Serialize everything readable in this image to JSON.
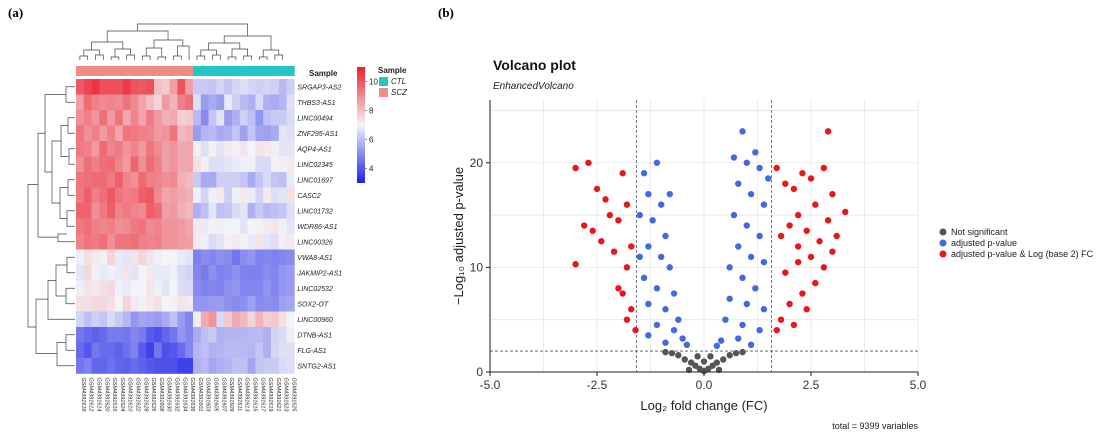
{
  "panel_a_label": "(a)",
  "panel_b_label": "(b)",
  "chart_data": [
    {
      "type": "heatmap",
      "annotation_title": "Sample",
      "annotation_legend": {
        "title": "Sample",
        "entries": [
          {
            "name": "CTL",
            "color": "#22c6c9"
          },
          {
            "name": "SCZ",
            "color": "#f08c86"
          }
        ]
      },
      "colorbar": {
        "ticks": [
          10,
          8,
          6,
          4
        ],
        "min": 3,
        "max": 11,
        "low_color": "#1d22e6",
        "mid_color": "#f4f4f8",
        "high_color": "#ec1f2c"
      },
      "genes": [
        "SRGAP3-AS2",
        "THBS3-AS1",
        "LINC00494",
        "ZNF295-AS1",
        "AQP4-AS1",
        "LINC02345",
        "LINC01697",
        "CASC2",
        "LINC01732",
        "WDR86-AS1",
        "LINC00326",
        "VWA8-AS1",
        "JAKMIP2-AS1",
        "LINC02532",
        "SOX2-OT",
        "LINC00960",
        "DTNB-AS1",
        "FLG-AS1",
        "SNTG2-AS1"
      ],
      "samples": [
        "GSM4391618",
        "GSM4391612",
        "GSM4391614",
        "GSM4391620",
        "GSM4391616",
        "GSM4391624",
        "GSM4391610",
        "GSM4391622",
        "GSM4391628",
        "GSM4391626",
        "GSM4391608",
        "GSM4391630",
        "GSM4391632",
        "GSM4391634",
        "GSM4391636",
        "GSM4391601",
        "GSM4391603",
        "GSM4391605",
        "GSM4391607",
        "GSM4391609",
        "GSM4391611",
        "GSM4391613",
        "GSM4391615",
        "GSM4391617",
        "GSM4391619",
        "GSM4391621",
        "GSM4391623",
        "GSM4391625"
      ],
      "sample_groups": [
        "SCZ",
        "SCZ",
        "SCZ",
        "SCZ",
        "SCZ",
        "SCZ",
        "SCZ",
        "SCZ",
        "SCZ",
        "SCZ",
        "SCZ",
        "SCZ",
        "SCZ",
        "SCZ",
        "SCZ",
        "CTL",
        "CTL",
        "CTL",
        "CTL",
        "CTL",
        "CTL",
        "CTL",
        "CTL",
        "CTL",
        "CTL",
        "CTL",
        "CTL",
        "CTL"
      ],
      "values": [
        [
          9.9,
          10.3,
          10.6,
          10.1,
          10.1,
          10.1,
          10.5,
          10.0,
          9.9,
          10.1,
          8.0,
          7.8,
          8.6,
          10.0,
          8.6,
          6.2,
          6.2,
          6.1,
          6.4,
          6.1,
          6.4,
          6.6,
          6.4,
          6.3,
          6.4,
          6.3,
          5.9,
          6.3
        ],
        [
          8.6,
          9.6,
          9.2,
          9.0,
          9.1,
          9.0,
          9.4,
          9.0,
          8.5,
          8.0,
          7.6,
          8.7,
          8.2,
          9.2,
          9.5,
          6.6,
          5.3,
          5.6,
          5.3,
          6.8,
          6.3,
          5.9,
          5.7,
          6.5,
          5.7,
          5.6,
          5.8,
          6.6
        ],
        [
          8.9,
          9.2,
          8.8,
          9.5,
          8.7,
          9.4,
          8.4,
          9.1,
          8.5,
          9.3,
          8.7,
          8.3,
          8.4,
          7.7,
          7.8,
          5.9,
          5.0,
          6.1,
          6.7,
          5.3,
          5.7,
          6.3,
          6.0,
          5.2,
          6.0,
          6.2,
          6.2,
          6.5
        ],
        [
          9.4,
          8.9,
          9.2,
          8.7,
          9.2,
          8.5,
          9.4,
          9.3,
          9.2,
          9.1,
          8.7,
          8.8,
          9.4,
          8.1,
          8.3,
          5.3,
          5.8,
          5.9,
          5.6,
          5.7,
          6.1,
          5.4,
          6.1,
          5.5,
          5.4,
          5.6,
          6.7,
          6.6
        ],
        [
          9.3,
          9.2,
          8.7,
          9.6,
          9.1,
          9.3,
          8.8,
          9.1,
          8.7,
          9.4,
          9.0,
          8.6,
          8.8,
          8.4,
          8.5,
          7.1,
          6.6,
          7.1,
          6.7,
          7.2,
          7.1,
          7.3,
          7.0,
          7.3,
          7.2,
          6.9,
          6.7,
          6.7
        ],
        [
          8.9,
          9.5,
          9.2,
          9.5,
          9.6,
          9.1,
          8.7,
          9.7,
          8.9,
          9.6,
          9.2,
          8.6,
          8.8,
          8.4,
          8.5,
          7.4,
          7.1,
          6.6,
          6.6,
          6.7,
          6.8,
          6.9,
          6.9,
          6.5,
          6.5,
          7.1,
          6.9,
          7.2
        ],
        [
          9.4,
          9.5,
          9.6,
          9.6,
          9.3,
          9.8,
          9.1,
          8.9,
          9.6,
          9.2,
          9.1,
          8.9,
          9.0,
          8.3,
          8.1,
          6.2,
          5.6,
          5.6,
          6.3,
          6.3,
          6.3,
          6.1,
          5.6,
          6.1,
          6.5,
          6.1,
          6.0,
          6.8
        ],
        [
          9.3,
          9.8,
          9.2,
          9.5,
          9.9,
          9.4,
          9.2,
          9.3,
          9.8,
          9.9,
          9.0,
          8.5,
          8.6,
          8.4,
          8.3,
          6.9,
          6.4,
          6.9,
          7.2,
          6.3,
          6.9,
          7.2,
          6.8,
          6.4,
          7.2,
          6.6,
          6.7,
          7.4
        ],
        [
          9.7,
          9.7,
          8.9,
          9.3,
          9.8,
          9.1,
          9.3,
          9.1,
          9.0,
          9.8,
          9.6,
          8.6,
          8.7,
          8.3,
          8.1,
          5.7,
          6.0,
          6.7,
          6.0,
          6.1,
          6.5,
          6.7,
          5.7,
          6.2,
          5.9,
          6.0,
          6.1,
          6.6
        ],
        [
          9.3,
          9.5,
          9.2,
          9.1,
          9.2,
          8.9,
          9.0,
          9.3,
          9.4,
          9.0,
          9.1,
          8.8,
          8.8,
          8.7,
          8.5,
          7.2,
          6.8,
          7.1,
          6.9,
          7.0,
          7.0,
          6.7,
          7.0,
          7.1,
          7.2,
          7.3,
          6.9,
          6.7
        ],
        [
          9.1,
          9.4,
          9.3,
          9.5,
          8.9,
          9.4,
          9.4,
          9.5,
          9.2,
          9.1,
          9.2,
          8.8,
          8.8,
          8.7,
          8.6,
          7.2,
          6.9,
          6.5,
          6.7,
          7.1,
          7.2,
          7.1,
          6.8,
          7.3,
          6.7,
          6.6,
          7.1,
          7.2
        ],
        [
          6.9,
          7.4,
          7.2,
          7.1,
          7.6,
          6.8,
          6.7,
          7.3,
          7.6,
          7.3,
          6.9,
          7.0,
          7.0,
          6.8,
          6.7,
          4.8,
          5.0,
          4.9,
          5.1,
          5.0,
          4.6,
          5.0,
          5.2,
          4.8,
          4.9,
          4.8,
          4.9,
          5.0
        ],
        [
          6.7,
          7.5,
          7.1,
          6.8,
          6.9,
          6.8,
          7.3,
          6.7,
          7.0,
          7.2,
          6.8,
          6.8,
          6.9,
          6.5,
          6.4,
          4.9,
          4.7,
          5.1,
          4.8,
          4.9,
          5.1,
          4.8,
          4.8,
          4.8,
          5.0,
          4.9,
          5.2,
          5.3
        ],
        [
          6.9,
          7.3,
          7.2,
          7.4,
          7.5,
          6.9,
          6.8,
          7.0,
          7.0,
          7.3,
          6.9,
          6.7,
          7.0,
          6.6,
          6.5,
          5.0,
          4.8,
          4.9,
          4.8,
          5.1,
          5.2,
          4.9,
          4.9,
          4.9,
          5.2,
          4.9,
          5.2,
          5.3
        ],
        [
          7.4,
          7.4,
          7.5,
          7.5,
          7.4,
          7.0,
          7.6,
          7.2,
          7.1,
          7.2,
          7.4,
          7.0,
          7.1,
          7.3,
          7.2,
          5.2,
          5.2,
          5.3,
          5.3,
          5.1,
          5.0,
          5.1,
          5.4,
          5.0,
          5.1,
          5.0,
          5.4,
          5.5
        ],
        [
          6.4,
          6.0,
          6.3,
          6.1,
          6.5,
          6.2,
          5.8,
          5.2,
          5.5,
          5.4,
          5.3,
          5.6,
          6.0,
          5.3,
          4.9,
          6.9,
          8.4,
          8.8,
          6.5,
          7.8,
          8.4,
          8.1,
          7.6,
          8.2,
          7.7,
          7.8,
          7.4,
          7.0
        ],
        [
          4.6,
          4.4,
          4.2,
          4.4,
          4.7,
          4.7,
          4.6,
          4.9,
          4.7,
          4.1,
          3.9,
          4.3,
          4.6,
          5.2,
          4.9,
          5.6,
          6.0,
          6.2,
          5.7,
          5.8,
          5.8,
          5.8,
          5.9,
          5.9,
          5.7,
          6.4,
          6.5,
          6.9
        ],
        [
          4.4,
          4.0,
          4.6,
          4.4,
          4.4,
          4.2,
          4.5,
          4.8,
          4.1,
          3.6,
          4.6,
          3.9,
          4.0,
          4.4,
          4.9,
          5.8,
          6.0,
          5.7,
          5.8,
          5.9,
          5.9,
          5.9,
          5.8,
          6.1,
          5.7,
          6.4,
          6.6,
          6.6
        ],
        [
          4.6,
          4.8,
          4.3,
          4.3,
          4.5,
          4.3,
          4.2,
          4.4,
          4.2,
          4.0,
          3.9,
          3.9,
          3.9,
          3.6,
          3.6,
          5.7,
          5.9,
          5.5,
          5.7,
          5.8,
          6.0,
          6.0,
          5.5,
          6.1,
          6.2,
          6.2,
          6.5,
          6.6
        ]
      ]
    },
    {
      "type": "scatter",
      "title": "Volcano plot",
      "subtitle": "EnhancedVolcano",
      "xlabel": "Log₂ fold change (FC)",
      "ylabel": "−Log₁₀ adjusted p-value",
      "xlim": [
        -5.0,
        5.0
      ],
      "ylim": [
        0,
        26
      ],
      "xticks": [
        -5.0,
        -2.5,
        0.0,
        2.5,
        5.0
      ],
      "yticks": [
        0,
        10,
        20
      ],
      "fc_cutoff": 1.58,
      "p_cutoff_log10": 2,
      "caption": "total = 9399 variables",
      "legend": [
        {
          "name": "Not significant",
          "color": "#555555"
        },
        {
          "name": "adjusted p-value",
          "color": "#4169e1"
        },
        {
          "name": "adjusted p-value & Log (base 2) FC",
          "color": "#e8171c"
        }
      ],
      "series": [
        {
          "name": "adjusted p-value & Log (base 2) FC",
          "points": [
            [
              -3.0,
              19.5
            ],
            [
              -2.7,
              20.0
            ],
            [
              -2.5,
              17.5
            ],
            [
              -2.3,
              16.5
            ],
            [
              -2.2,
              15.0
            ],
            [
              -2.6,
              13.5
            ],
            [
              -2.4,
              12.5
            ],
            [
              -2.8,
              14.0
            ],
            [
              -3.0,
              10.3
            ],
            [
              -1.9,
              19.0
            ],
            [
              -1.8,
              16.0
            ],
            [
              -2.0,
              14.5
            ],
            [
              -1.7,
              12.0
            ],
            [
              -1.8,
              10.0
            ],
            [
              -2.0,
              8.0
            ],
            [
              -1.9,
              7.5
            ],
            [
              -1.7,
              6.0
            ],
            [
              -1.8,
              5.0
            ],
            [
              -1.6,
              4.0
            ],
            [
              -2.1,
              11.5
            ],
            [
              1.7,
              19.5
            ],
            [
              1.9,
              18.0
            ],
            [
              2.1,
              17.5
            ],
            [
              2.3,
              19.0
            ],
            [
              2.5,
              18.5
            ],
            [
              2.8,
              19.5
            ],
            [
              3.0,
              17.0
            ],
            [
              3.3,
              15.3
            ],
            [
              2.9,
              23.0
            ],
            [
              2.6,
              16.0
            ],
            [
              2.2,
              15.0
            ],
            [
              2.0,
              14.0
            ],
            [
              1.8,
              13.0
            ],
            [
              2.4,
              13.5
            ],
            [
              2.7,
              12.5
            ],
            [
              3.1,
              13.0
            ],
            [
              2.5,
              11.0
            ],
            [
              2.2,
              10.5
            ],
            [
              1.9,
              9.5
            ],
            [
              2.8,
              10.0
            ],
            [
              3.0,
              11.5
            ],
            [
              2.6,
              8.5
            ],
            [
              2.3,
              7.5
            ],
            [
              2.0,
              6.5
            ],
            [
              1.8,
              5.0
            ],
            [
              2.4,
              6.0
            ],
            [
              2.1,
              4.5
            ],
            [
              1.7,
              4.0
            ],
            [
              2.2,
              12.0
            ],
            [
              2.9,
              14.5
            ]
          ]
        },
        {
          "name": "adjusted p-value",
          "points": [
            [
              -1.4,
              19.0
            ],
            [
              -1.1,
              20.0
            ],
            [
              -1.3,
              17.0
            ],
            [
              -1.0,
              16.0
            ],
            [
              -1.2,
              14.5
            ],
            [
              -0.9,
              13.0
            ],
            [
              -1.3,
              12.0
            ],
            [
              -1.0,
              11.0
            ],
            [
              -0.8,
              10.0
            ],
            [
              -1.4,
              9.0
            ],
            [
              -1.1,
              8.0
            ],
            [
              -0.7,
              7.5
            ],
            [
              -1.3,
              6.5
            ],
            [
              -0.9,
              6.0
            ],
            [
              -0.6,
              5.0
            ],
            [
              -1.1,
              4.5
            ],
            [
              -0.7,
              4.0
            ],
            [
              -0.5,
              3.2
            ],
            [
              -1.3,
              3.5
            ],
            [
              -0.4,
              2.6
            ],
            [
              -0.9,
              2.8
            ],
            [
              -1.5,
              15.0
            ],
            [
              -1.5,
              11.0
            ],
            [
              -0.8,
              17.0
            ],
            [
              0.9,
              23.0
            ],
            [
              1.2,
              21.0
            ],
            [
              1.0,
              20.0
            ],
            [
              1.3,
              19.5
            ],
            [
              0.8,
              18.0
            ],
            [
              1.1,
              17.0
            ],
            [
              1.4,
              16.0
            ],
            [
              0.7,
              15.0
            ],
            [
              1.0,
              14.0
            ],
            [
              1.3,
              13.0
            ],
            [
              0.8,
              12.0
            ],
            [
              1.1,
              11.0
            ],
            [
              0.6,
              10.0
            ],
            [
              1.4,
              10.5
            ],
            [
              0.9,
              9.0
            ],
            [
              1.2,
              8.0
            ],
            [
              0.6,
              7.0
            ],
            [
              1.0,
              6.5
            ],
            [
              1.4,
              6.0
            ],
            [
              0.5,
              5.0
            ],
            [
              0.9,
              4.5
            ],
            [
              1.3,
              4.0
            ],
            [
              0.4,
              3.0
            ],
            [
              0.8,
              3.2
            ],
            [
              1.1,
              2.6
            ],
            [
              0.3,
              2.5
            ],
            [
              1.5,
              18.5
            ],
            [
              0.7,
              20.5
            ]
          ]
        },
        {
          "name": "Not significant",
          "points": [
            [
              -0.6,
              1.6
            ],
            [
              -0.45,
              1.2
            ],
            [
              -0.3,
              0.9
            ],
            [
              -0.2,
              0.6
            ],
            [
              -0.1,
              0.3
            ],
            [
              0.0,
              0.1
            ],
            [
              0.1,
              0.3
            ],
            [
              0.2,
              0.6
            ],
            [
              0.3,
              0.9
            ],
            [
              0.45,
              1.2
            ],
            [
              0.6,
              1.6
            ],
            [
              0.75,
              1.8
            ],
            [
              -0.75,
              1.8
            ],
            [
              0.9,
              1.9
            ],
            [
              -0.9,
              1.9
            ],
            [
              -0.35,
              0.2
            ],
            [
              0.35,
              0.2
            ],
            [
              0.0,
              1.0
            ],
            [
              -0.15,
              1.5
            ],
            [
              0.15,
              1.5
            ]
          ]
        }
      ]
    }
  ]
}
